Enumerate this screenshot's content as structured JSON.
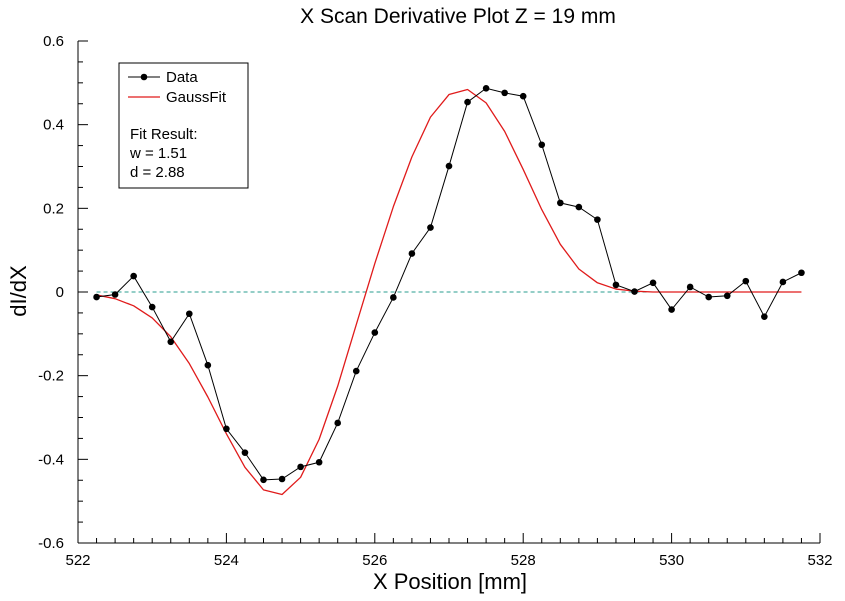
{
  "chart_data": {
    "type": "line",
    "title": "X Scan Derivative Plot Z = 19 mm",
    "xlabel": "X Position [mm]",
    "ylabel": "dI/dX",
    "xlim": [
      522,
      532
    ],
    "ylim": [
      -0.6,
      0.6
    ],
    "x_ticks": [
      522,
      524,
      526,
      528,
      530,
      532
    ],
    "x_tick_labels": [
      "522",
      "524",
      "526",
      "528",
      "530",
      "532"
    ],
    "y_ticks": [
      -0.6,
      -0.4,
      -0.2,
      0,
      0.2,
      0.4,
      0.6
    ],
    "y_tick_labels": [
      "-0.6",
      "-0.4",
      "-0.2",
      "0",
      "0.2",
      "0.4",
      "0.6"
    ],
    "grid": false,
    "zero_line": {
      "y": 0,
      "color": "#2a9d8f",
      "style": "dashed"
    },
    "legend_position": "top-left",
    "series": [
      {
        "name": "Data",
        "color": "#000000",
        "marker": "circle",
        "x": [
          522.25,
          522.5,
          522.75,
          523.0,
          523.25,
          523.5,
          523.75,
          524.0,
          524.25,
          524.5,
          524.75,
          525.0,
          525.25,
          525.5,
          525.75,
          526.0,
          526.25,
          526.5,
          526.75,
          527.0,
          527.25,
          527.5,
          527.75,
          528.0,
          528.25,
          528.5,
          528.75,
          529.0,
          529.25,
          529.5,
          529.75,
          530.0,
          530.25,
          530.5,
          530.75,
          531.0,
          531.25,
          531.5,
          531.75
        ],
        "y": [
          -0.012,
          -0.006,
          0.038,
          -0.036,
          -0.119,
          -0.052,
          -0.175,
          -0.327,
          -0.384,
          -0.449,
          -0.447,
          -0.418,
          -0.407,
          -0.313,
          -0.189,
          -0.097,
          -0.013,
          0.092,
          0.154,
          0.301,
          0.454,
          0.487,
          0.476,
          0.468,
          0.352,
          0.213,
          0.203,
          0.173,
          0.017,
          0.001,
          0.022,
          -0.042,
          0.012,
          -0.012,
          -0.009,
          0.026,
          -0.059,
          0.024,
          0.046
        ]
      },
      {
        "name": "GaussFit",
        "color": "#e01b1b",
        "x": [
          522.25,
          522.5,
          522.75,
          523.0,
          523.25,
          523.5,
          523.75,
          524.0,
          524.25,
          524.5,
          524.75,
          525.0,
          525.25,
          525.5,
          525.75,
          526.0,
          526.25,
          526.5,
          526.75,
          527.0,
          527.25,
          527.5,
          527.75,
          528.0,
          528.25,
          528.5,
          528.75,
          529.0,
          529.25,
          529.5,
          529.75,
          530.0,
          530.25,
          530.5,
          530.75,
          531.0,
          531.25,
          531.5,
          531.75
        ],
        "y": [
          -0.007,
          -0.016,
          -0.033,
          -0.062,
          -0.107,
          -0.171,
          -0.251,
          -0.339,
          -0.419,
          -0.473,
          -0.484,
          -0.443,
          -0.352,
          -0.225,
          -0.078,
          0.068,
          0.204,
          0.323,
          0.418,
          0.472,
          0.484,
          0.452,
          0.384,
          0.293,
          0.197,
          0.114,
          0.055,
          0.022,
          0.007,
          0.002,
          0.0,
          0.0,
          0.0,
          0.0,
          0.0,
          0.0,
          0.0,
          0.0,
          0.0
        ]
      }
    ],
    "legend": {
      "entries": [
        "Data",
        "GaussFit"
      ],
      "fit_result_label": "Fit Result:",
      "fit_w": "w = 1.51",
      "fit_d": "d = 2.88"
    }
  }
}
